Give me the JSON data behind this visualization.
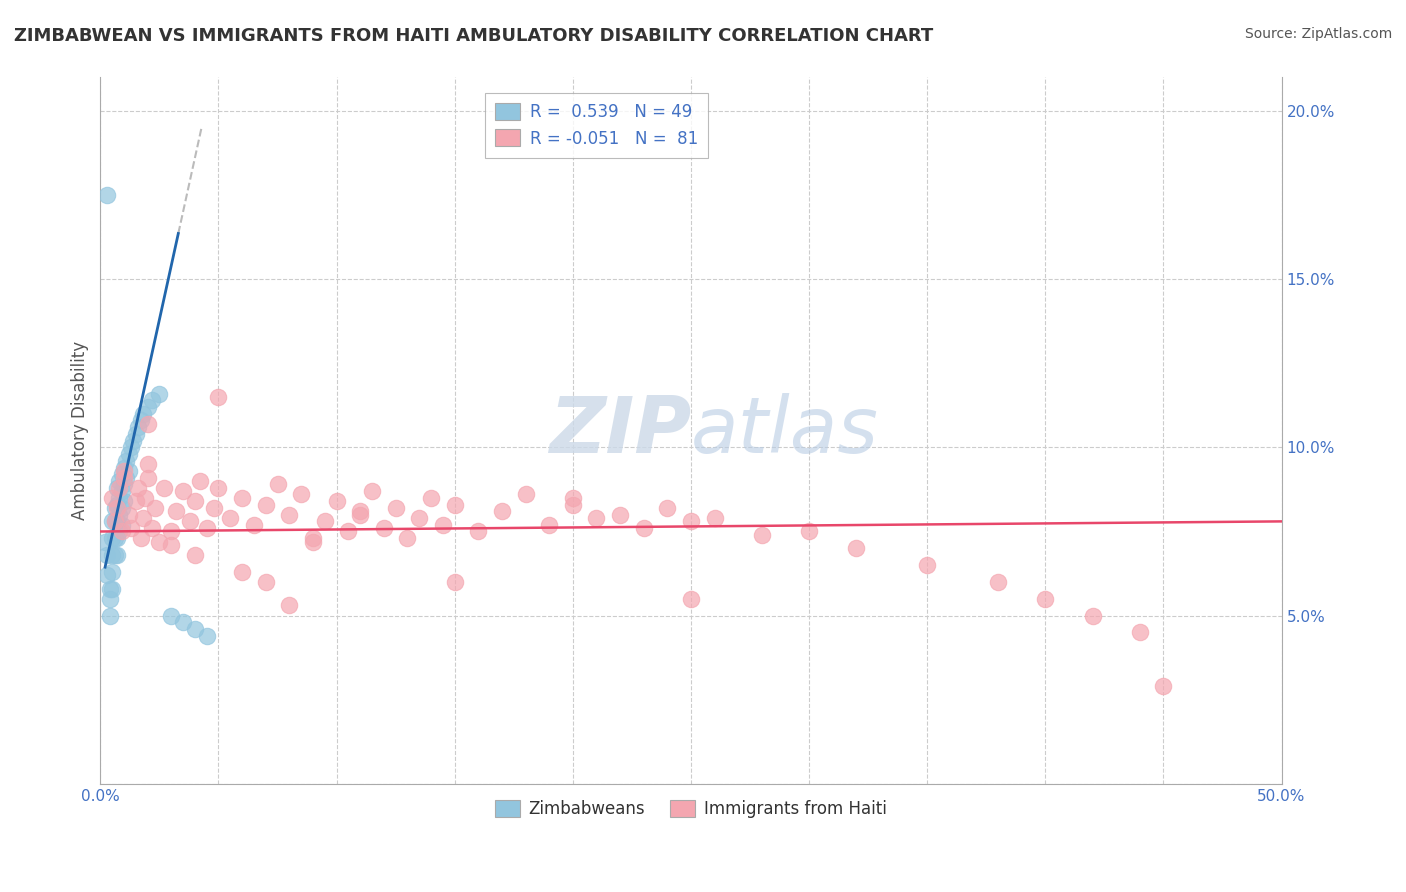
{
  "title": "ZIMBABWEAN VS IMMIGRANTS FROM HAITI AMBULATORY DISABILITY CORRELATION CHART",
  "source": "Source: ZipAtlas.com",
  "ylabel": "Ambulatory Disability",
  "xlim": [
    0.0,
    0.5
  ],
  "ylim": [
    0.0,
    0.21
  ],
  "xticks": [
    0.0,
    0.05,
    0.1,
    0.15,
    0.2,
    0.25,
    0.3,
    0.35,
    0.4,
    0.45,
    0.5
  ],
  "yticks": [
    0.0,
    0.05,
    0.1,
    0.15,
    0.2
  ],
  "ytick_labels": [
    "",
    "5.0%",
    "10.0%",
    "15.0%",
    "20.0%"
  ],
  "xtick_labels": [
    "0.0%",
    "",
    "",
    "",
    "",
    "",
    "",
    "",
    "",
    "",
    "50.0%"
  ],
  "legend_blue_r": "0.539",
  "legend_blue_n": "49",
  "legend_pink_r": "-0.051",
  "legend_pink_n": "81",
  "blue_color": "#92c5de",
  "pink_color": "#f4a6b0",
  "blue_line_color": "#2166ac",
  "pink_line_color": "#e8476a",
  "watermark_color": "#ccd9e8",
  "blue_scatter_x": [
    0.002,
    0.003,
    0.003,
    0.004,
    0.004,
    0.004,
    0.005,
    0.005,
    0.005,
    0.005,
    0.005,
    0.006,
    0.006,
    0.006,
    0.006,
    0.007,
    0.007,
    0.007,
    0.007,
    0.007,
    0.008,
    0.008,
    0.008,
    0.008,
    0.009,
    0.009,
    0.009,
    0.009,
    0.01,
    0.01,
    0.01,
    0.011,
    0.011,
    0.012,
    0.012,
    0.013,
    0.014,
    0.015,
    0.016,
    0.017,
    0.018,
    0.02,
    0.022,
    0.025,
    0.03,
    0.035,
    0.04,
    0.045,
    0.003
  ],
  "blue_scatter_y": [
    0.072,
    0.068,
    0.062,
    0.058,
    0.055,
    0.05,
    0.078,
    0.073,
    0.068,
    0.063,
    0.058,
    0.082,
    0.078,
    0.073,
    0.068,
    0.088,
    0.083,
    0.078,
    0.073,
    0.068,
    0.09,
    0.085,
    0.08,
    0.075,
    0.092,
    0.087,
    0.082,
    0.077,
    0.094,
    0.089,
    0.084,
    0.096,
    0.091,
    0.098,
    0.093,
    0.1,
    0.102,
    0.104,
    0.106,
    0.108,
    0.11,
    0.112,
    0.114,
    0.116,
    0.05,
    0.048,
    0.046,
    0.044,
    0.175
  ],
  "pink_scatter_x": [
    0.005,
    0.006,
    0.007,
    0.008,
    0.009,
    0.01,
    0.012,
    0.013,
    0.015,
    0.016,
    0.017,
    0.018,
    0.019,
    0.02,
    0.022,
    0.023,
    0.025,
    0.027,
    0.03,
    0.032,
    0.035,
    0.038,
    0.04,
    0.042,
    0.045,
    0.048,
    0.05,
    0.055,
    0.06,
    0.065,
    0.07,
    0.075,
    0.08,
    0.085,
    0.09,
    0.095,
    0.1,
    0.105,
    0.11,
    0.115,
    0.12,
    0.125,
    0.13,
    0.135,
    0.14,
    0.145,
    0.15,
    0.16,
    0.17,
    0.18,
    0.19,
    0.2,
    0.21,
    0.22,
    0.23,
    0.24,
    0.25,
    0.26,
    0.28,
    0.3,
    0.32,
    0.35,
    0.38,
    0.4,
    0.42,
    0.44,
    0.01,
    0.02,
    0.03,
    0.05,
    0.07,
    0.09,
    0.11,
    0.15,
    0.2,
    0.25,
    0.02,
    0.04,
    0.06,
    0.08,
    0.45
  ],
  "pink_scatter_y": [
    0.085,
    0.078,
    0.082,
    0.088,
    0.075,
    0.091,
    0.08,
    0.076,
    0.084,
    0.088,
    0.073,
    0.079,
    0.085,
    0.091,
    0.076,
    0.082,
    0.072,
    0.088,
    0.075,
    0.081,
    0.087,
    0.078,
    0.084,
    0.09,
    0.076,
    0.082,
    0.088,
    0.079,
    0.085,
    0.077,
    0.083,
    0.089,
    0.08,
    0.086,
    0.072,
    0.078,
    0.084,
    0.075,
    0.081,
    0.087,
    0.076,
    0.082,
    0.073,
    0.079,
    0.085,
    0.077,
    0.083,
    0.075,
    0.081,
    0.086,
    0.077,
    0.083,
    0.079,
    0.08,
    0.076,
    0.082,
    0.078,
    0.079,
    0.074,
    0.075,
    0.07,
    0.065,
    0.06,
    0.055,
    0.05,
    0.045,
    0.093,
    0.095,
    0.071,
    0.115,
    0.06,
    0.073,
    0.08,
    0.06,
    0.085,
    0.055,
    0.107,
    0.068,
    0.063,
    0.053,
    0.029
  ]
}
